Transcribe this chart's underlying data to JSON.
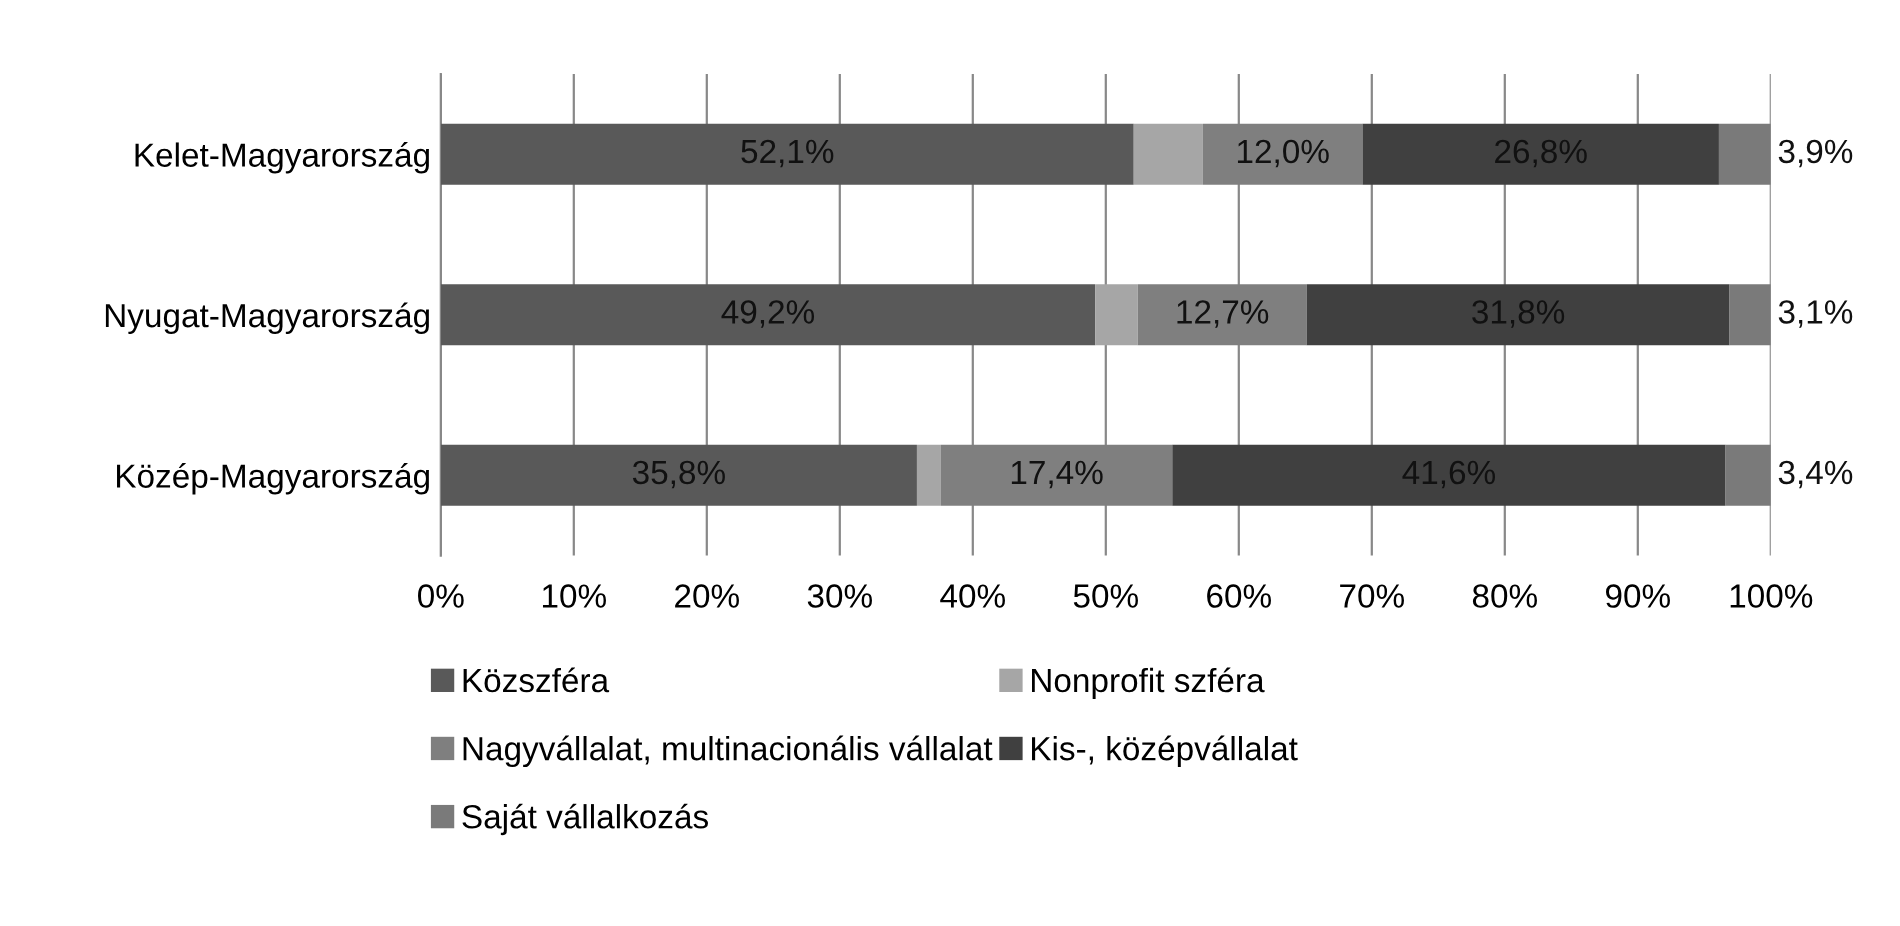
{
  "chart_data": {
    "type": "bar",
    "orientation": "horizontal",
    "stacked": true,
    "categories": [
      "Kelet-Magyarország",
      "Nyugat-Magyarország",
      "Közép-Magyarország"
    ],
    "series": [
      {
        "name": "Közszféra",
        "color": "#595959",
        "values": [
          52.1,
          49.2,
          35.8
        ],
        "value_labels": [
          "52,1%",
          "49,2%",
          "35,8%"
        ]
      },
      {
        "name": "Nonprofit szféra",
        "color": "#a6a6a6",
        "values": [
          5.2,
          3.2,
          1.8
        ],
        "value_labels": [
          null,
          null,
          null
        ]
      },
      {
        "name": "Nagyvállalat, multinacionális vállalat",
        "color": "#7f7f7f",
        "values": [
          12.0,
          12.7,
          17.4
        ],
        "value_labels": [
          "12,0%",
          "12,7%",
          "17,4%"
        ]
      },
      {
        "name": "Kis-, középvállalat",
        "color": "#404040",
        "values": [
          26.8,
          31.8,
          41.6
        ],
        "value_labels": [
          "26,8%",
          "31,8%",
          "41,6%"
        ]
      },
      {
        "name": "Saját vállalkozás",
        "color": "#7a7a7a",
        "values": [
          3.9,
          3.1,
          3.4
        ],
        "value_labels": [
          "3,9%",
          "3,1%",
          "3,4%"
        ]
      }
    ],
    "xlim": [
      0,
      100
    ],
    "xticks": [
      {
        "value": 0,
        "label": "0%"
      },
      {
        "value": 10,
        "label": "10%"
      },
      {
        "value": 20,
        "label": "20%"
      },
      {
        "value": 30,
        "label": "30%"
      },
      {
        "value": 40,
        "label": "40%"
      },
      {
        "value": 50,
        "label": "50%"
      },
      {
        "value": 60,
        "label": "60%"
      },
      {
        "value": 70,
        "label": "70%"
      },
      {
        "value": 80,
        "label": "80%"
      },
      {
        "value": 90,
        "label": "90%"
      },
      {
        "value": 100,
        "label": "100%"
      }
    ],
    "grid": "x",
    "legend": "bottom"
  }
}
